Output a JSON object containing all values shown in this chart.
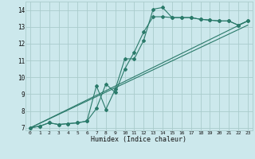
{
  "xlabel": "Humidex (Indice chaleur)",
  "bg_color": "#cce8ec",
  "grid_color": "#aacccc",
  "line_color": "#2a7a6a",
  "xlim": [
    -0.5,
    23.5
  ],
  "ylim": [
    6.85,
    14.5
  ],
  "xticks": [
    0,
    1,
    2,
    3,
    4,
    5,
    6,
    7,
    8,
    9,
    10,
    11,
    12,
    13,
    14,
    15,
    16,
    17,
    18,
    19,
    20,
    21,
    22,
    23
  ],
  "yticks": [
    7,
    8,
    9,
    10,
    11,
    12,
    13,
    14
  ],
  "curve1_x": [
    0,
    1,
    2,
    3,
    4,
    5,
    6,
    7,
    8,
    9,
    10,
    11,
    12,
    13,
    14,
    15,
    16,
    17,
    18,
    19,
    20,
    21,
    22,
    23
  ],
  "curve1_y": [
    7.0,
    7.1,
    7.3,
    7.2,
    7.25,
    7.3,
    7.4,
    9.5,
    8.1,
    9.3,
    11.1,
    11.1,
    12.2,
    14.05,
    14.15,
    13.55,
    13.55,
    13.55,
    13.45,
    13.4,
    13.35,
    13.35,
    13.1,
    13.35
  ],
  "curve2_x": [
    0,
    1,
    2,
    3,
    4,
    5,
    6,
    7,
    8,
    9,
    10,
    11,
    12,
    13,
    14,
    15,
    16,
    17,
    18,
    19,
    20,
    21,
    22,
    23
  ],
  "curve2_y": [
    7.0,
    7.1,
    7.3,
    7.2,
    7.25,
    7.3,
    7.4,
    8.15,
    9.6,
    9.1,
    10.5,
    11.5,
    12.7,
    13.6,
    13.6,
    13.55,
    13.55,
    13.55,
    13.45,
    13.4,
    13.35,
    13.35,
    13.1,
    13.35
  ],
  "line3_x": [
    0,
    23
  ],
  "line3_y": [
    7.0,
    13.35
  ],
  "line4_x": [
    0,
    23
  ],
  "line4_y": [
    7.0,
    13.1
  ]
}
